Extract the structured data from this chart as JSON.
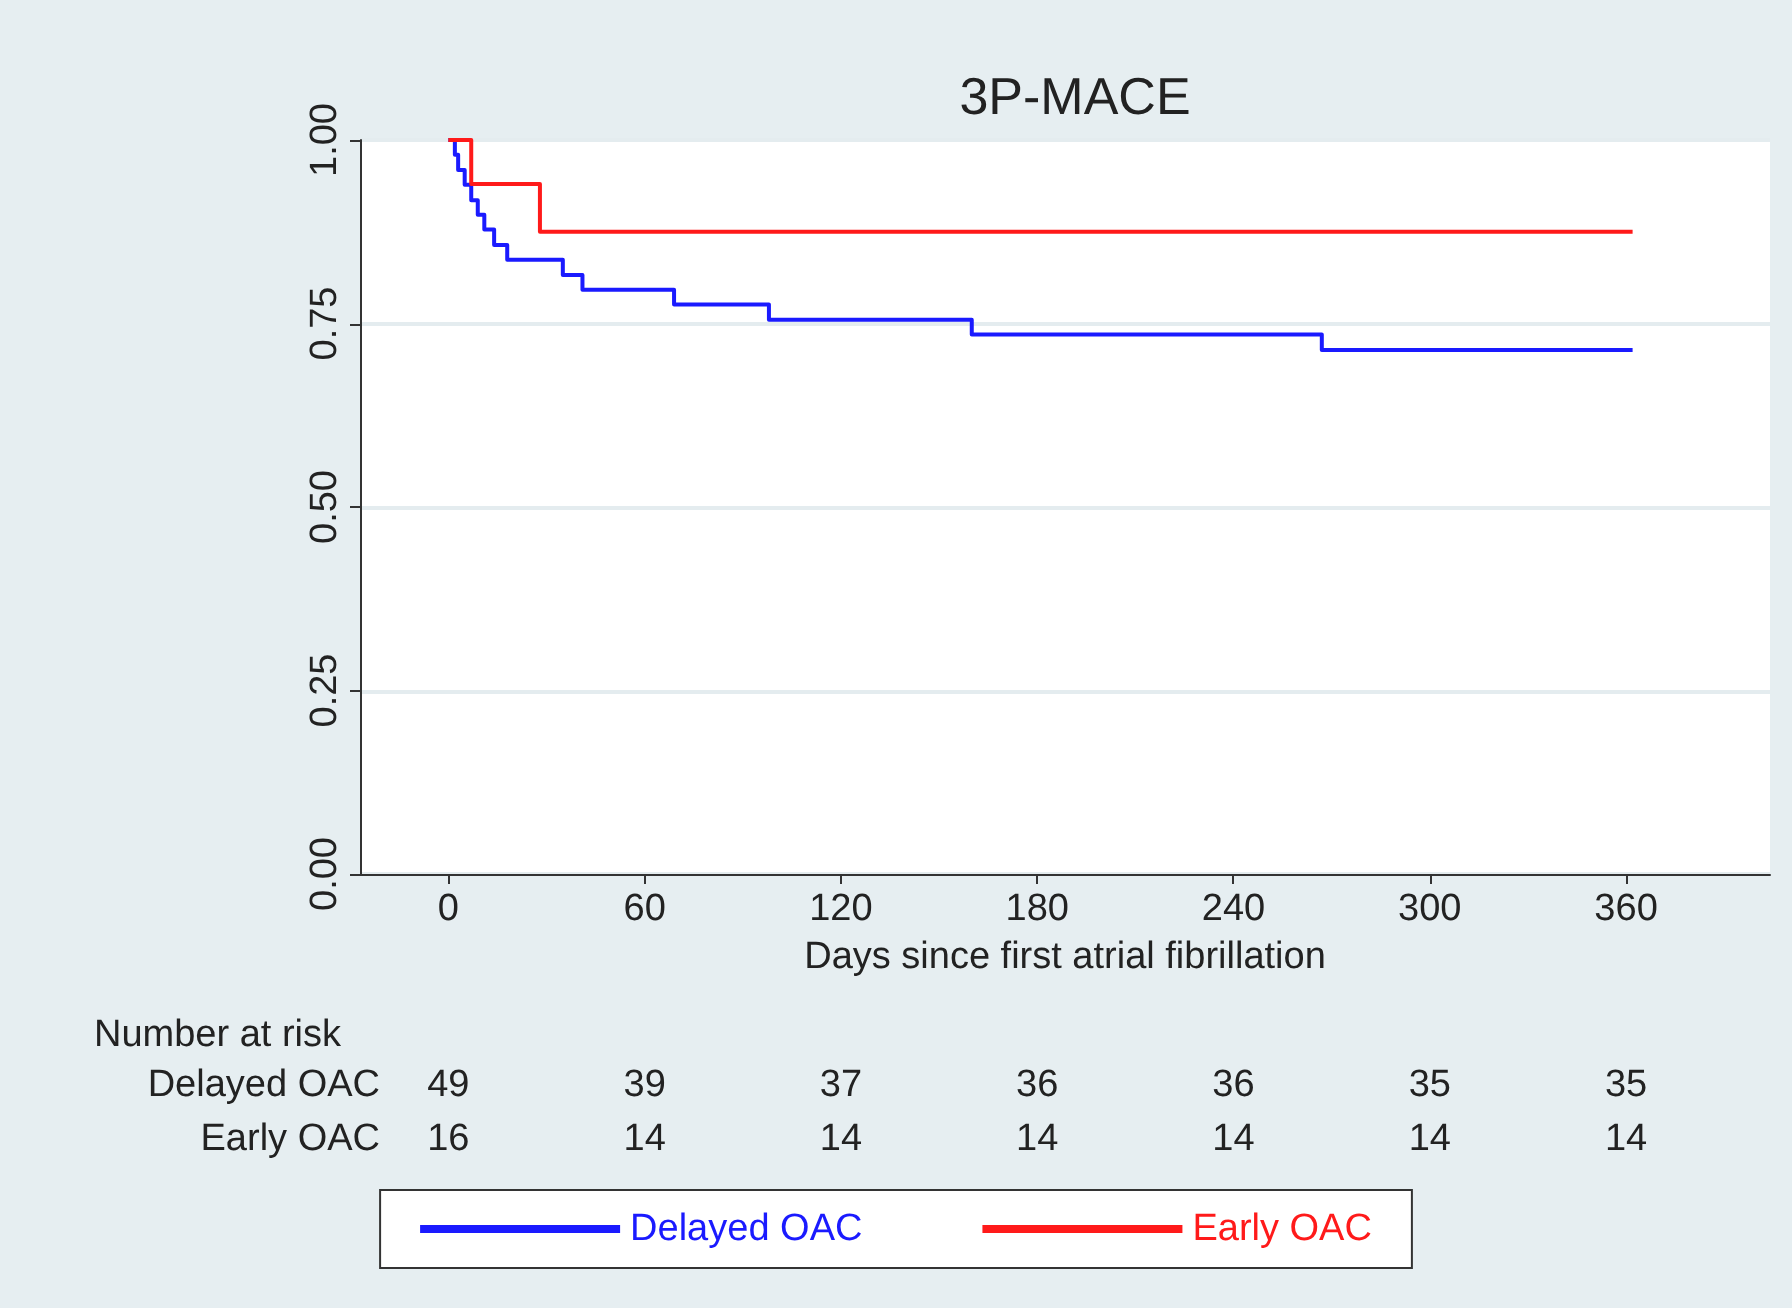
{
  "chart_data": {
    "type": "step",
    "title": "3P-MACE",
    "xlabel": "Days since first atrial fibrillation",
    "series": [
      {
        "name": "Delayed OAC",
        "color": "#1a1aff",
        "x": [
          0,
          2,
          3,
          5,
          7,
          9,
          11,
          14,
          18,
          35,
          41,
          69,
          98,
          160,
          267,
          362
        ],
        "values": [
          1,
          0.98,
          0.959,
          0.939,
          0.918,
          0.898,
          0.878,
          0.857,
          0.837,
          0.816,
          0.796,
          0.776,
          0.755,
          0.735,
          0.714,
          0.714
        ]
      },
      {
        "name": "Early OAC",
        "color": "#ff1a1a",
        "x": [
          0,
          7,
          28,
          362
        ],
        "values": [
          1,
          0.94,
          0.875,
          0.875
        ]
      }
    ],
    "xlim": [
      -27,
      404
    ],
    "xticks": [
      0,
      60,
      120,
      180,
      240,
      300,
      360
    ],
    "ylim": [
      0,
      1
    ],
    "yticks": [
      {
        "value": 0,
        "label": "0.00"
      },
      {
        "value": 0.25,
        "label": "0.25"
      },
      {
        "value": 0.5,
        "label": "0.50"
      },
      {
        "value": 0.75,
        "label": "0.75"
      },
      {
        "value": 1,
        "label": "1.00"
      }
    ],
    "grid": "y",
    "legend": "bottom",
    "line_style": "solid",
    "marker": "none",
    "annotations": [
      "Number at risk",
      "Delayed OAC",
      "49",
      "39",
      "37",
      "36",
      "36",
      "35",
      "35",
      "Early OAC",
      "16",
      "14",
      "14",
      "14",
      "14",
      "14",
      "14"
    ]
  }
}
